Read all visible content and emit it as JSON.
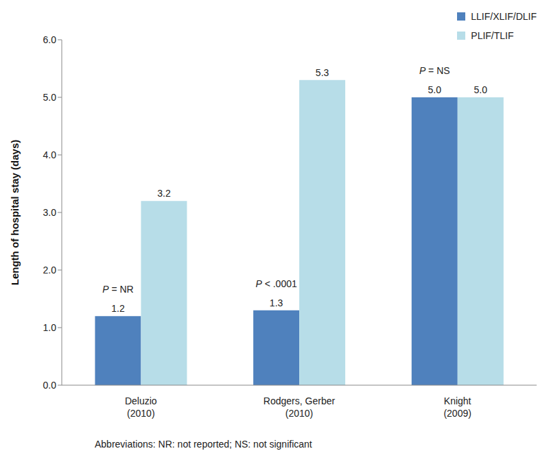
{
  "chart_data": {
    "type": "bar",
    "categories": [
      "Deluzio (2010)",
      "Rodgers, Gerber (2010)",
      "Knight (2009)"
    ],
    "series": [
      {
        "name": "LLIF/XLIF/DLIF",
        "color": "#4f81bd",
        "values": [
          1.2,
          1.3,
          5.0
        ],
        "value_labels": [
          "1.2",
          "1.3",
          "5.0"
        ]
      },
      {
        "name": "PLIF/TLIF",
        "color": "#b7dde8",
        "values": [
          3.2,
          5.3,
          5.0
        ],
        "value_labels": [
          "3.2",
          "5.3",
          "5.0"
        ]
      }
    ],
    "y_label": "Length of hospital stay (days)",
    "ylim": [
      0,
      6
    ],
    "yticks": [
      {
        "value": 0,
        "label": "0.0"
      },
      {
        "value": 1,
        "label": "1.0"
      },
      {
        "value": 2,
        "label": "2.0"
      },
      {
        "value": 3,
        "label": "3.0"
      },
      {
        "value": 4,
        "label": "4.0"
      },
      {
        "value": 5,
        "label": "5.0"
      },
      {
        "value": 6,
        "label": "6.0"
      }
    ],
    "annotations": [
      "P = NR",
      "P < .0001",
      "P = NS"
    ],
    "footnote": "Abbreviations: NR: not reported; NS: not significant",
    "grid": false,
    "legend": "top-right",
    "data_labels": true
  }
}
